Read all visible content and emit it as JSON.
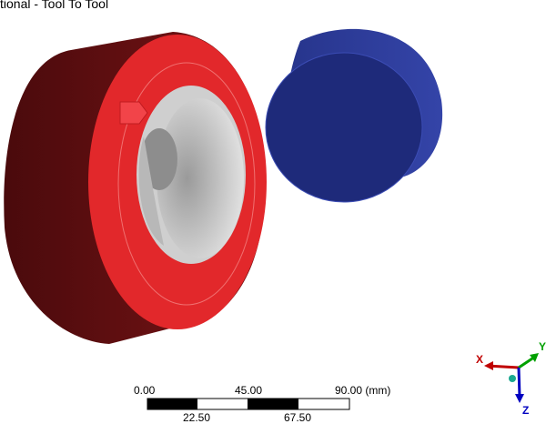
{
  "viewport": {
    "title": "tional - Tool To Tool"
  },
  "scale_bar": {
    "top_labels": [
      "0.00",
      "45.00",
      "90.00 (mm)"
    ],
    "bottom_labels": [
      "22.50",
      "67.50"
    ]
  },
  "triad": {
    "x_label": "X",
    "y_label": "Y",
    "z_label": "Z",
    "x_color": "#c00000",
    "y_color": "#00a000",
    "z_color": "#0000c0"
  },
  "colors": {
    "ring_front": "#e2282b",
    "ring_side": "#6b1012",
    "bore": "#c8c8c8",
    "cylinder_face": "#1e2a7a",
    "cylinder_side": "#2f3f9e",
    "contact_marker": "#f24449"
  }
}
